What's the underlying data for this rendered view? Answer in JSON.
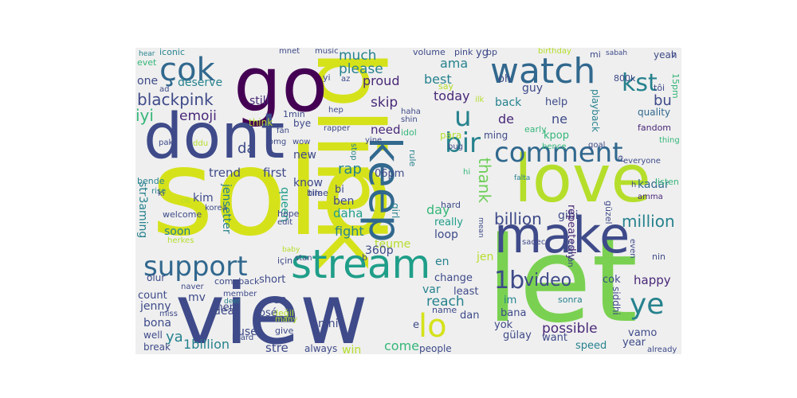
{
  "cloud": {
    "background": "#efefef",
    "palette": [
      "#440154",
      "#482878",
      "#3e4a89",
      "#31688e",
      "#26828e",
      "#1f9e89",
      "#35b779",
      "#6ece58",
      "#b5de2b",
      "#fde725"
    ],
    "words": [
      {
        "text": "solo",
        "color": "#d5e21a"
      },
      {
        "text": "view",
        "color": "#3e4a89"
      },
      {
        "text": "blink",
        "color": "#d5e21a"
      },
      {
        "text": "let",
        "color": "#7ad151"
      },
      {
        "text": "love",
        "color": "#b5de2b"
      },
      {
        "text": "go",
        "color": "#440154"
      },
      {
        "text": "dont",
        "color": "#3e4a89"
      },
      {
        "text": "make",
        "color": "#3e4a89"
      },
      {
        "text": "stream",
        "color": "#1f9e89"
      },
      {
        "text": "watch",
        "color": "#31688e"
      },
      {
        "text": "comment",
        "color": "#31688e"
      },
      {
        "text": "keep",
        "color": "#31688e"
      },
      {
        "text": "support",
        "color": "#31688e"
      },
      {
        "text": "çok",
        "color": "#31688e"
      },
      {
        "text": "lo",
        "color": "#d5e21a"
      },
      {
        "text": "ye",
        "color": "#26828e"
      },
      {
        "text": "kst",
        "color": "#26828e"
      },
      {
        "text": "1b",
        "color": "#3e4a89"
      },
      {
        "text": "u",
        "color": "#26828e"
      },
      {
        "text": "bir",
        "color": "#26828e"
      },
      {
        "text": "blackpink",
        "color": "#3e4a89"
      },
      {
        "text": "video",
        "color": "#3e4a89"
      },
      {
        "text": "billion",
        "color": "#3e4a89"
      },
      {
        "text": "million",
        "color": "#26828e"
      },
      {
        "text": "emoji",
        "color": "#482878"
      },
      {
        "text": "iyi",
        "color": "#35b779"
      },
      {
        "text": "much",
        "color": "#26828e"
      },
      {
        "text": "please",
        "color": "#26828e"
      },
      {
        "text": "ama",
        "color": "#26828e"
      },
      {
        "text": "proud",
        "color": "#482878"
      },
      {
        "text": "best",
        "color": "#26828e"
      },
      {
        "text": "today",
        "color": "#482878"
      },
      {
        "text": "skip",
        "color": "#482878"
      },
      {
        "text": "need",
        "color": "#482878"
      },
      {
        "text": "still",
        "color": "#482878"
      },
      {
        "text": "thank",
        "color": "#6ece58"
      },
      {
        "text": "rap",
        "color": "#26828e"
      },
      {
        "text": "da",
        "color": "#3e4a89"
      },
      {
        "text": "de",
        "color": "#482878"
      },
      {
        "text": "ne",
        "color": "#3e4a89"
      },
      {
        "text": "bu",
        "color": "#3e4a89"
      },
      {
        "text": "one",
        "color": "#3e4a89"
      },
      {
        "text": "deserve",
        "color": "#26828e"
      },
      {
        "text": "trend",
        "color": "#3e4a89"
      },
      {
        "text": "first",
        "color": "#3e4a89"
      },
      {
        "text": "new",
        "color": "#3e4a89"
      },
      {
        "text": "fight",
        "color": "#26828e"
      },
      {
        "text": "day",
        "color": "#35b779"
      },
      {
        "text": "daha",
        "color": "#1f9e89"
      },
      {
        "text": "soon",
        "color": "#26828e"
      },
      {
        "text": "reach",
        "color": "#26828e"
      },
      {
        "text": "happy",
        "color": "#482878"
      },
      {
        "text": "possible",
        "color": "#482878"
      },
      {
        "text": "kadar",
        "color": "#31688e"
      },
      {
        "text": "kpop",
        "color": "#35b779"
      },
      {
        "text": "guy",
        "color": "#3e4a89"
      },
      {
        "text": "back",
        "color": "#26828e"
      },
      {
        "text": "help",
        "color": "#3e4a89"
      },
      {
        "text": "oh",
        "color": "#3e4a89"
      },
      {
        "text": "yg",
        "color": "#3e4a89"
      },
      {
        "text": "bp",
        "color": "#3e4a89"
      },
      {
        "text": "pink",
        "color": "#3e4a89"
      },
      {
        "text": "volume",
        "color": "#3e4a89"
      },
      {
        "text": "iconic",
        "color": "#26828e"
      },
      {
        "text": "evet",
        "color": "#35b779"
      },
      {
        "text": "hear",
        "color": "#26828e"
      },
      {
        "text": "ad",
        "color": "#3e4a89"
      },
      {
        "text": "mnet",
        "color": "#3e4a89"
      },
      {
        "text": "music",
        "color": "#3e4a89"
      },
      {
        "text": "birthday",
        "color": "#b5de2b"
      },
      {
        "text": "mi",
        "color": "#3e4a89"
      },
      {
        "text": "sabah",
        "color": "#3e4a89"
      },
      {
        "text": "yeah",
        "color": "#3e4a89"
      },
      {
        "text": "800k",
        "color": "#3e4a89"
      },
      {
        "text": "15pm",
        "color": "#35b779"
      },
      {
        "text": "quality",
        "color": "#31688e"
      },
      {
        "text": "fandom",
        "color": "#482878"
      },
      {
        "text": "tôi",
        "color": "#3e4a89"
      },
      {
        "text": "playback",
        "color": "#26828e"
      },
      {
        "text": "v",
        "color": "#3e4a89"
      },
      {
        "text": "yi",
        "color": "#3e4a89"
      },
      {
        "text": "az",
        "color": "#3e4a89"
      },
      {
        "text": "say",
        "color": "#b5de2b"
      },
      {
        "text": "1min",
        "color": "#3e4a89"
      },
      {
        "text": "hep",
        "color": "#3e4a89"
      },
      {
        "text": "ilk",
        "color": "#b5de2b"
      },
      {
        "text": "haha",
        "color": "#3e4a89"
      },
      {
        "text": "shin",
        "color": "#3e4a89"
      },
      {
        "text": "think",
        "color": "#b5de2b"
      },
      {
        "text": "bye",
        "color": "#3e4a89"
      },
      {
        "text": "idol",
        "color": "#35b779"
      },
      {
        "text": "rapper",
        "color": "#3e4a89"
      },
      {
        "text": "para",
        "color": "#b5de2b"
      },
      {
        "text": "ming",
        "color": "#3e4a89"
      },
      {
        "text": "early",
        "color": "#35b779"
      },
      {
        "text": "fan",
        "color": "#3e4a89"
      },
      {
        "text": "omg",
        "color": "#3e4a89"
      },
      {
        "text": "wow",
        "color": "#3e4a89"
      },
      {
        "text": "yine",
        "color": "#3e4a89"
      },
      {
        "text": "bence",
        "color": "#35b779"
      },
      {
        "text": "bug",
        "color": "#3e4a89"
      },
      {
        "text": "goal",
        "color": "#3e4a89"
      },
      {
        "text": "el",
        "color": "#3e4a89"
      },
      {
        "text": "thing",
        "color": "#35b779"
      },
      {
        "text": "everyone",
        "color": "#3e4a89"
      },
      {
        "text": "pak",
        "color": "#3e4a89"
      },
      {
        "text": "ddu",
        "color": "#b5de2b"
      },
      {
        "text": "know",
        "color": "#3e4a89"
      },
      {
        "text": "rule",
        "color": "#26828e"
      },
      {
        "text": "06pm",
        "color": "#3e4a89"
      },
      {
        "text": "stop",
        "color": "#26828e"
      },
      {
        "text": "hi",
        "color": "#35b779"
      },
      {
        "text": "falta",
        "color": "#26828e"
      },
      {
        "text": "listen",
        "color": "#35b779"
      },
      {
        "text": "bende",
        "color": "#26828e"
      },
      {
        "text": "rise",
        "color": "#26828e"
      },
      {
        "text": "ki",
        "color": "#3e4a89"
      },
      {
        "text": "str3aming",
        "color": "#26828e"
      },
      {
        "text": "jensetter",
        "color": "#26828e"
      },
      {
        "text": "bile",
        "color": "#3e4a89"
      },
      {
        "text": "time",
        "color": "#3e4a89"
      },
      {
        "text": "bi",
        "color": "#3e4a89"
      },
      {
        "text": "ben",
        "color": "#3e4a89"
      },
      {
        "text": "girl",
        "color": "#26828e"
      },
      {
        "text": "gibi",
        "color": "#3e4a89"
      },
      {
        "text": "repeatedly",
        "color": "#482878"
      },
      {
        "text": "amma",
        "color": "#482878"
      },
      {
        "text": "ok",
        "color": "#b5de2b"
      },
      {
        "text": "korea",
        "color": "#3e4a89"
      },
      {
        "text": "kim",
        "color": "#3e4a89"
      },
      {
        "text": "welcome",
        "color": "#3e4a89"
      },
      {
        "text": "herkes",
        "color": "#b5de2b"
      },
      {
        "text": "queen",
        "color": "#1f9e89"
      },
      {
        "text": "hope",
        "color": "#3e4a89"
      },
      {
        "text": "edit",
        "color": "#3e4a89"
      },
      {
        "text": "baby",
        "color": "#b5de2b"
      },
      {
        "text": "hard",
        "color": "#3e4a89"
      },
      {
        "text": "really",
        "color": "#1f9e89"
      },
      {
        "text": "loop",
        "color": "#3e4a89"
      },
      {
        "text": "mean",
        "color": "#3e4a89"
      },
      {
        "text": "teume",
        "color": "#b5de2b"
      },
      {
        "text": "güzel",
        "color": "#3e4a89"
      },
      {
        "text": "h",
        "color": "#3e4a89"
      },
      {
        "text": "360p",
        "color": "#3e4a89"
      },
      {
        "text": "jen",
        "color": "#b5de2b"
      },
      {
        "text": "sadece",
        "color": "#3e4a89"
      },
      {
        "text": "zaman",
        "color": "#3e4a89"
      },
      {
        "text": "even",
        "color": "#3e4a89"
      },
      {
        "text": "nin",
        "color": "#3e4a89"
      },
      {
        "text": "için",
        "color": "#3e4a89"
      },
      {
        "text": "stan",
        "color": "#3e4a89"
      },
      {
        "text": "b",
        "color": "#3e4a89"
      },
      {
        "text": "en",
        "color": "#26828e"
      },
      {
        "text": "olur",
        "color": "#3e4a89"
      },
      {
        "text": "naver",
        "color": "#3e4a89"
      },
      {
        "text": "comeback",
        "color": "#3e4a89"
      },
      {
        "text": "short",
        "color": "#3e4a89"
      },
      {
        "text": "change",
        "color": "#3e4a89"
      },
      {
        "text": "cok",
        "color": "#3e4a89"
      },
      {
        "text": "least",
        "color": "#3e4a89"
      },
      {
        "text": "var",
        "color": "#26828e"
      },
      {
        "text": "count",
        "color": "#3e4a89"
      },
      {
        "text": "member",
        "color": "#3e4a89"
      },
      {
        "text": "deer",
        "color": "#26828e"
      },
      {
        "text": "mers",
        "color": "#3e4a89"
      },
      {
        "text": "mv",
        "color": "#3e4a89"
      },
      {
        "text": "see",
        "color": "#3e4a89"
      },
      {
        "text": "name",
        "color": "#3e4a89"
      },
      {
        "text": "im",
        "color": "#26828e"
      },
      {
        "text": "sonra",
        "color": "#26828e"
      },
      {
        "text": "siddhi",
        "color": "#3e4a89"
      },
      {
        "text": "jenny",
        "color": "#3e4a89"
      },
      {
        "text": "dear",
        "color": "#3e4a89"
      },
      {
        "text": "değil",
        "color": "#b5de2b"
      },
      {
        "text": "dan",
        "color": "#3e4a89"
      },
      {
        "text": "bana",
        "color": "#3e4a89"
      },
      {
        "text": "miss",
        "color": "#3e4a89"
      },
      {
        "text": "rosé",
        "color": "#3e4a89"
      },
      {
        "text": "yok",
        "color": "#3e4a89"
      },
      {
        "text": "bona",
        "color": "#3e4a89"
      },
      {
        "text": "give",
        "color": "#3e4a89"
      },
      {
        "text": "nini",
        "color": "#3e4a89"
      },
      {
        "text": "gülay",
        "color": "#3e4a89"
      },
      {
        "text": "vamo",
        "color": "#3e4a89"
      },
      {
        "text": "use",
        "color": "#3e4a89"
      },
      {
        "text": "year",
        "color": "#3e4a89"
      },
      {
        "text": "ya",
        "color": "#26828e"
      },
      {
        "text": "lizard",
        "color": "#3e4a89"
      },
      {
        "text": "well",
        "color": "#3e4a89"
      },
      {
        "text": "many",
        "color": "#b5de2b"
      },
      {
        "text": "e",
        "color": "#3e4a89"
      },
      {
        "text": "want",
        "color": "#3e4a89"
      },
      {
        "text": "break",
        "color": "#3e4a89"
      },
      {
        "text": "1billion",
        "color": "#26828e"
      },
      {
        "text": "stre",
        "color": "#3e4a89"
      },
      {
        "text": "always",
        "color": "#3e4a89"
      },
      {
        "text": "win",
        "color": "#b5de2b"
      },
      {
        "text": "come",
        "color": "#35b779"
      },
      {
        "text": "people",
        "color": "#3e4a89"
      },
      {
        "text": "speed",
        "color": "#26828e"
      },
      {
        "text": "already",
        "color": "#3e4a89"
      }
    ]
  }
}
